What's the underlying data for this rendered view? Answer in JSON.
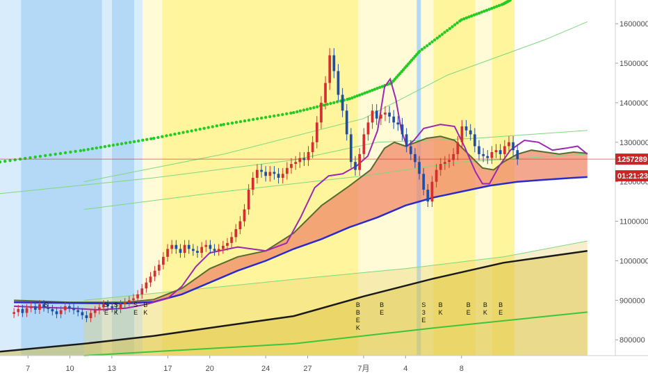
{
  "colors": {
    "background": "#ffffff",
    "zone_yellow": "#fff59d",
    "zone_light_yellow": "#fffbd6",
    "zone_blue": "#b3d9f7",
    "zone_light_blue": "#d8ecfb",
    "candle_up": "#d32f2f",
    "candle_down": "#1e4fa8",
    "ema_fast": "#9c27b0",
    "band_fill": "#f08a6a",
    "band_upper": "#556b2f",
    "band_lower": "#2b2bcc",
    "long_ma": "#1a1a1a",
    "green_dots": "#22cc22",
    "green_lines": "#7ed87e",
    "price_line": "#c62828",
    "axis_text": "#4a4a4a"
  },
  "chart_data": {
    "type": "candlestick",
    "title": "",
    "y_axis": {
      "ticks": [
        "1600000",
        "1500000",
        "1400000",
        "1300000",
        "1200000",
        "1100000",
        "1000000",
        "900000",
        "800000"
      ],
      "range": [
        760000,
        1660000
      ],
      "position": "right"
    },
    "x_axis": {
      "ticks": [
        "7",
        "10",
        "13",
        "17",
        "20",
        "24",
        "27",
        "7月",
        "4",
        "8"
      ],
      "range_days": [
        -1,
        43
      ]
    },
    "x_tick_days": [
      1,
      4,
      7,
      11,
      14,
      18,
      21,
      25,
      28,
      32
    ],
    "current_price": {
      "label": "1257289",
      "value": 1257289
    },
    "countdown": {
      "label": "01:21:23"
    },
    "signal_markers": [
      {
        "day": 2.3,
        "label": "S"
      },
      {
        "day": 6.6,
        "label": "SE"
      },
      {
        "day": 7.3,
        "label": "SK"
      },
      {
        "day": 8.7,
        "label": "SE"
      },
      {
        "day": 9.4,
        "label": "BK"
      },
      {
        "day": 24.6,
        "label": "BBEK"
      },
      {
        "day": 26.3,
        "label": "BE"
      },
      {
        "day": 29.3,
        "label": "S3E"
      },
      {
        "day": 30.5,
        "label": "BK"
      },
      {
        "day": 32.5,
        "label": "BE"
      },
      {
        "day": 33.7,
        "label": "BK"
      },
      {
        "day": 34.8,
        "label": "BE"
      }
    ],
    "candles_close": [
      870000,
      878000,
      868000,
      880000,
      885000,
      876000,
      890000,
      882000,
      878000,
      872000,
      865000,
      875000,
      885000,
      880000,
      875000,
      870000,
      862000,
      855000,
      868000,
      875000,
      882000,
      890000,
      885000,
      880000,
      878000,
      890000,
      895000,
      900000,
      905000,
      915000,
      930000,
      945000,
      960000,
      975000,
      990000,
      1010000,
      1030000,
      1040000,
      1030000,
      1020000,
      1040000,
      1030000,
      1025000,
      1020000,
      1035000,
      1040000,
      1030000,
      1025000,
      1030000,
      1038000,
      1045000,
      1060000,
      1080000,
      1100000,
      1130000,
      1180000,
      1210000,
      1230000,
      1225000,
      1215000,
      1225000,
      1220000,
      1210000,
      1220000,
      1235000,
      1245000,
      1250000,
      1260000,
      1255000,
      1275000,
      1300000,
      1350000,
      1400000,
      1450000,
      1520000,
      1480000,
      1420000,
      1380000,
      1320000,
      1250000,
      1230000,
      1270000,
      1320000,
      1350000,
      1380000,
      1360000,
      1370000,
      1375000,
      1365000,
      1350000,
      1345000,
      1320000,
      1290000,
      1270000,
      1250000,
      1220000,
      1180000,
      1150000,
      1200000,
      1230000,
      1245000,
      1250000,
      1255000,
      1270000,
      1300000,
      1340000,
      1330000,
      1320000,
      1290000,
      1270000,
      1265000,
      1260000,
      1275000,
      1280000,
      1270000,
      1290000,
      1300000,
      1280000,
      1257289
    ],
    "series": [
      {
        "role": "ema_fast",
        "points": [
          [
            0,
            885000
          ],
          [
            2,
            882000
          ],
          [
            4,
            880000
          ],
          [
            6,
            876000
          ],
          [
            8,
            880000
          ],
          [
            9.5,
            890000
          ],
          [
            11,
            905000
          ],
          [
            12,
            935000
          ],
          [
            13,
            985000
          ],
          [
            14,
            1020000
          ],
          [
            16,
            1035000
          ],
          [
            18,
            1025000
          ],
          [
            19.5,
            1045000
          ],
          [
            20.5,
            1110000
          ],
          [
            21.5,
            1185000
          ],
          [
            22.5,
            1215000
          ],
          [
            23.5,
            1220000
          ],
          [
            24.5,
            1240000
          ],
          [
            25.3,
            1265000
          ],
          [
            26,
            1330000
          ],
          [
            26.5,
            1440000
          ],
          [
            26.9,
            1460000
          ],
          [
            27.3,
            1410000
          ],
          [
            27.7,
            1330000
          ],
          [
            28.1,
            1290000
          ],
          [
            28.6,
            1305000
          ],
          [
            29.3,
            1335000
          ],
          [
            30.5,
            1345000
          ],
          [
            31.5,
            1340000
          ],
          [
            32.2,
            1290000
          ],
          [
            33,
            1225000
          ],
          [
            33.5,
            1195000
          ],
          [
            34,
            1195000
          ],
          [
            34.7,
            1240000
          ],
          [
            35.5,
            1280000
          ],
          [
            36.5,
            1305000
          ],
          [
            37.5,
            1300000
          ],
          [
            38.5,
            1280000
          ],
          [
            39.5,
            1285000
          ],
          [
            40.3,
            1290000
          ],
          [
            41,
            1270000
          ]
        ]
      },
      {
        "role": "band_upper",
        "points": [
          [
            0,
            900000
          ],
          [
            4,
            895000
          ],
          [
            8,
            895000
          ],
          [
            10,
            902000
          ],
          [
            12,
            930000
          ],
          [
            14,
            980000
          ],
          [
            16,
            1010000
          ],
          [
            18,
            1025000
          ],
          [
            20,
            1070000
          ],
          [
            22,
            1140000
          ],
          [
            24,
            1190000
          ],
          [
            25.5,
            1230000
          ],
          [
            26.5,
            1285000
          ],
          [
            27.2,
            1300000
          ],
          [
            28,
            1290000
          ],
          [
            29.5,
            1310000
          ],
          [
            30.5,
            1315000
          ],
          [
            31.5,
            1305000
          ],
          [
            32.5,
            1270000
          ],
          [
            33.5,
            1235000
          ],
          [
            34.3,
            1230000
          ],
          [
            35,
            1250000
          ],
          [
            36,
            1270000
          ],
          [
            37,
            1280000
          ],
          [
            38,
            1275000
          ],
          [
            39,
            1270000
          ],
          [
            40,
            1275000
          ],
          [
            41,
            1272000
          ]
        ]
      },
      {
        "role": "band_lower",
        "points": [
          [
            0,
            895000
          ],
          [
            4,
            893000
          ],
          [
            8,
            892000
          ],
          [
            10,
            896000
          ],
          [
            12,
            915000
          ],
          [
            14,
            945000
          ],
          [
            16,
            975000
          ],
          [
            18,
            1000000
          ],
          [
            20,
            1030000
          ],
          [
            22,
            1055000
          ],
          [
            24,
            1085000
          ],
          [
            26,
            1110000
          ],
          [
            28,
            1140000
          ],
          [
            30,
            1160000
          ],
          [
            32,
            1175000
          ],
          [
            34,
            1190000
          ],
          [
            36,
            1200000
          ],
          [
            38,
            1205000
          ],
          [
            40,
            1210000
          ],
          [
            41,
            1212000
          ]
        ]
      },
      {
        "role": "long_ma",
        "points": [
          [
            -1,
            770000
          ],
          [
            5,
            790000
          ],
          [
            10,
            810000
          ],
          [
            15,
            835000
          ],
          [
            20,
            860000
          ],
          [
            25,
            910000
          ],
          [
            30,
            955000
          ],
          [
            35,
            995000
          ],
          [
            41,
            1025000
          ]
        ]
      },
      {
        "role": "green_dots",
        "points": [
          [
            -1,
            1250000
          ],
          [
            5,
            1280000
          ],
          [
            10,
            1310000
          ],
          [
            15,
            1345000
          ],
          [
            20,
            1375000
          ],
          [
            24,
            1410000
          ],
          [
            27,
            1450000
          ],
          [
            29,
            1530000
          ],
          [
            32,
            1610000
          ],
          [
            35,
            1650000
          ],
          [
            36,
            1670000
          ]
        ]
      },
      {
        "role": "green_line_upper",
        "points": [
          [
            5,
            1200000
          ],
          [
            15,
            1270000
          ],
          [
            25,
            1360000
          ],
          [
            31,
            1470000
          ],
          [
            38,
            1560000
          ],
          [
            41,
            1605000
          ]
        ]
      },
      {
        "role": "green_line_mid",
        "points": [
          [
            -1,
            1170000
          ],
          [
            10,
            1210000
          ],
          [
            20,
            1255000
          ],
          [
            26,
            1300000
          ],
          [
            33,
            1310000
          ],
          [
            41,
            1330000
          ]
        ]
      },
      {
        "role": "green_line_mid2",
        "points": [
          [
            5,
            1130000
          ],
          [
            15,
            1175000
          ],
          [
            25,
            1215000
          ],
          [
            32,
            1250000
          ],
          [
            41,
            1270000
          ]
        ]
      },
      {
        "role": "green_line_low",
        "points": [
          [
            5,
            900000
          ],
          [
            15,
            935000
          ],
          [
            22,
            960000
          ],
          [
            28,
            980000
          ],
          [
            35,
            1010000
          ],
          [
            41,
            1050000
          ]
        ]
      },
      {
        "role": "green_line_bottom",
        "points": [
          [
            5,
            760000
          ],
          [
            20,
            790000
          ],
          [
            30,
            830000
          ],
          [
            41,
            870000
          ]
        ]
      }
    ],
    "zones": [
      {
        "from": -1,
        "to": 0.5,
        "color": "light_blue"
      },
      {
        "from": 0.5,
        "to": 6.3,
        "color": "blue"
      },
      {
        "from": 6.3,
        "to": 7.0,
        "color": "light_blue"
      },
      {
        "from": 7.0,
        "to": 8.6,
        "color": "blue"
      },
      {
        "from": 8.6,
        "to": 9.2,
        "color": "light_blue"
      },
      {
        "from": 9.2,
        "to": 10.6,
        "color": "light_yellow"
      },
      {
        "from": 10.6,
        "to": 24.6,
        "color": "yellow"
      },
      {
        "from": 24.6,
        "to": 28.8,
        "color": "light_yellow"
      },
      {
        "from": 28.8,
        "to": 29.1,
        "color": "blue"
      },
      {
        "from": 29.1,
        "to": 30.0,
        "color": "light_yellow"
      },
      {
        "from": 30.0,
        "to": 33.0,
        "color": "yellow"
      },
      {
        "from": 33.0,
        "to": 34.2,
        "color": "light_yellow"
      },
      {
        "from": 34.2,
        "to": 35.8,
        "color": "yellow"
      }
    ]
  }
}
